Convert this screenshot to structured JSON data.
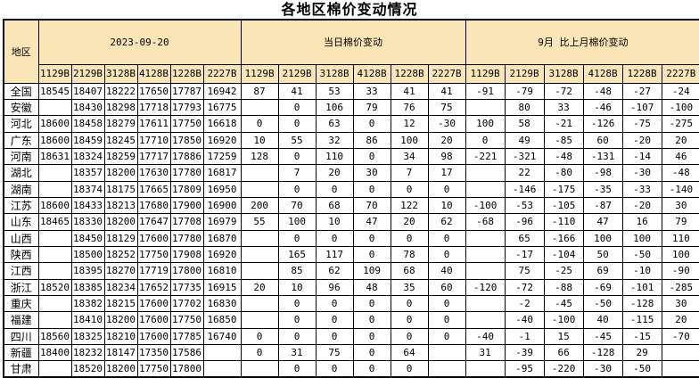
{
  "title": "各地区棉价变动情况",
  "colors": {
    "header_bg": "#fae5b6",
    "positive_value": "#ff0000",
    "negative_value": "#0b76cc",
    "border": "#000000",
    "base_text": "#000000"
  },
  "chart_data": {
    "type": "table",
    "title": "各地区棉价变动情况",
    "region_header": "地区",
    "column_groups": [
      "2023-09-20",
      "当日棉价变动",
      "9月 比上月棉价变动"
    ],
    "grade_columns": [
      "1129B",
      "2129B",
      "3128B",
      "4128B",
      "1228B",
      "2227B"
    ],
    "rows": [
      {
        "region": "全国",
        "today": [
          "18545",
          "18407",
          "18222",
          "17650",
          "17787",
          "16942"
        ],
        "daily_change": [
          "87",
          "41",
          "53",
          "33",
          "41",
          "41"
        ],
        "monthly_change": [
          "-91",
          "-79",
          "-72",
          "-48",
          "-27",
          "-24"
        ]
      },
      {
        "region": "安徽",
        "today": [
          "",
          "18430",
          "18298",
          "17718",
          "17793",
          "16775"
        ],
        "daily_change": [
          "",
          "0",
          "106",
          "79",
          "76",
          "75"
        ],
        "monthly_change": [
          "",
          "80",
          "33",
          "-46",
          "-107",
          "-100"
        ]
      },
      {
        "region": "河北",
        "today": [
          "18600",
          "18458",
          "18279",
          "17611",
          "17750",
          "16618"
        ],
        "daily_change": [
          "0",
          "0",
          "63",
          "0",
          "12",
          "-30"
        ],
        "monthly_change": [
          "100",
          "58",
          "-21",
          "-126",
          "-75",
          "-275"
        ]
      },
      {
        "region": "广东",
        "today": [
          "18600",
          "18459",
          "18245",
          "17710",
          "17850",
          "16920"
        ],
        "daily_change": [
          "10",
          "55",
          "32",
          "86",
          "100",
          "20"
        ],
        "monthly_change": [
          "0",
          "49",
          "-85",
          "60",
          "-20",
          "20"
        ]
      },
      {
        "region": "河南",
        "today": [
          "18631",
          "18324",
          "18259",
          "17717",
          "17886",
          "17259"
        ],
        "daily_change": [
          "128",
          "0",
          "110",
          "0",
          "34",
          "98"
        ],
        "monthly_change": [
          "-221",
          "-321",
          "-48",
          "-131",
          "-14",
          "46"
        ]
      },
      {
        "region": "湖北",
        "today": [
          "",
          "18357",
          "18200",
          "17630",
          "17780",
          "16817"
        ],
        "daily_change": [
          "",
          "7",
          "20",
          "30",
          "7",
          "17"
        ],
        "monthly_change": [
          "",
          "22",
          "-80",
          "-98",
          "-30",
          "-48"
        ]
      },
      {
        "region": "湖南",
        "today": [
          "",
          "18374",
          "18175",
          "17665",
          "17809",
          "16950"
        ],
        "daily_change": [
          "",
          "0",
          "0",
          "0",
          "0",
          "0"
        ],
        "monthly_change": [
          "",
          "-146",
          "-175",
          "-35",
          "-33",
          "-140"
        ]
      },
      {
        "region": "江苏",
        "today": [
          "18600",
          "18433",
          "18213",
          "17680",
          "17900",
          "16900"
        ],
        "daily_change": [
          "200",
          "70",
          "68",
          "70",
          "122",
          "10"
        ],
        "monthly_change": [
          "-100",
          "-53",
          "-105",
          "-87",
          "-20",
          "30"
        ]
      },
      {
        "region": "山东",
        "today": [
          "18465",
          "18330",
          "18200",
          "17647",
          "17708",
          "16979"
        ],
        "daily_change": [
          "55",
          "100",
          "10",
          "47",
          "20",
          "62"
        ],
        "monthly_change": [
          "-68",
          "-96",
          "-110",
          "47",
          "16",
          "79"
        ]
      },
      {
        "region": "山西",
        "today": [
          "",
          "18450",
          "18129",
          "17600",
          "17780",
          "16870"
        ],
        "daily_change": [
          "",
          "0",
          "0",
          "0",
          "0",
          "0"
        ],
        "monthly_change": [
          "",
          "65",
          "-166",
          "100",
          "100",
          "110"
        ]
      },
      {
        "region": "陕西",
        "today": [
          "",
          "18500",
          "18252",
          "17750",
          "17908",
          "16920"
        ],
        "daily_change": [
          "",
          "165",
          "117",
          "0",
          "78",
          "0"
        ],
        "monthly_change": [
          "",
          "-17",
          "-104",
          "50",
          "-50",
          "100"
        ]
      },
      {
        "region": "江西",
        "today": [
          "",
          "18395",
          "18270",
          "17719",
          "17800",
          "16810"
        ],
        "daily_change": [
          "",
          "85",
          "62",
          "109",
          "68",
          "40"
        ],
        "monthly_change": [
          "",
          "75",
          "-25",
          "69",
          "-10",
          "-90"
        ]
      },
      {
        "region": "浙江",
        "today": [
          "18520",
          "18385",
          "18234",
          "17652",
          "17735",
          "16915"
        ],
        "daily_change": [
          "20",
          "10",
          "96",
          "48",
          "35",
          "60"
        ],
        "monthly_change": [
          "-120",
          "-72",
          "-88",
          "-69",
          "-101",
          "-285"
        ]
      },
      {
        "region": "重庆",
        "today": [
          "",
          "18382",
          "18215",
          "17600",
          "17702",
          "16830"
        ],
        "daily_change": [
          "",
          "0",
          "0",
          "0",
          "0",
          "0"
        ],
        "monthly_change": [
          "",
          "-2",
          "-45",
          "-50",
          "-128",
          "30"
        ]
      },
      {
        "region": "福建",
        "today": [
          "",
          "18410",
          "18200",
          "17600",
          "17750",
          "16850"
        ],
        "daily_change": [
          "",
          "0",
          "0",
          "0",
          "0",
          "0"
        ],
        "monthly_change": [
          "",
          "-40",
          "-100",
          "40",
          "-115",
          "20"
        ]
      },
      {
        "region": "四川",
        "today": [
          "18560",
          "18325",
          "18210",
          "17600",
          "17785",
          "16740"
        ],
        "daily_change": [
          "0",
          "0",
          "0",
          "0",
          "0",
          "0"
        ],
        "monthly_change": [
          "-40",
          "-1",
          "15",
          "-45",
          "-15",
          "-70"
        ]
      },
      {
        "region": "新疆",
        "today": [
          "18400",
          "18232",
          "18147",
          "17350",
          "17586",
          ""
        ],
        "daily_change": [
          "0",
          "31",
          "75",
          "0",
          "64",
          ""
        ],
        "monthly_change": [
          "31",
          "-39",
          "66",
          "-128",
          "29",
          ""
        ]
      },
      {
        "region": "甘肃",
        "today": [
          "",
          "18520",
          "18200",
          "17750",
          "17800",
          ""
        ],
        "daily_change": [
          "",
          "0",
          "0",
          "0",
          "0",
          ""
        ],
        "monthly_change": [
          "",
          "-95",
          "-220",
          "-30",
          "-50",
          ""
        ]
      }
    ]
  }
}
